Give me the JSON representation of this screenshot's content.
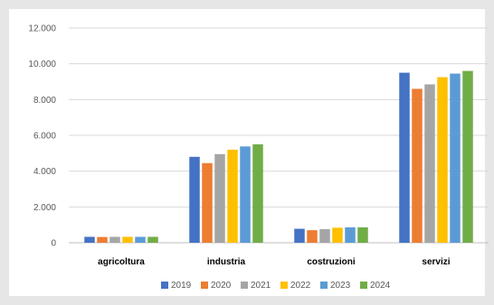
{
  "chart_data": {
    "type": "bar",
    "title": "",
    "xlabel": "",
    "ylabel": "",
    "categories": [
      "agricoltura",
      "industria",
      "costruzioni",
      "servizi"
    ],
    "series": [
      {
        "name": "2019",
        "color": "#4472c4",
        "values": [
          330,
          4800,
          780,
          9500
        ]
      },
      {
        "name": "2020",
        "color": "#ed7d31",
        "values": [
          320,
          4450,
          700,
          8600
        ]
      },
      {
        "name": "2021",
        "color": "#a5a5a5",
        "values": [
          330,
          4950,
          760,
          8850
        ]
      },
      {
        "name": "2022",
        "color": "#ffc000",
        "values": [
          330,
          5200,
          840,
          9250
        ]
      },
      {
        "name": "2023",
        "color": "#5b9bd5",
        "values": [
          330,
          5380,
          860,
          9450
        ]
      },
      {
        "name": "2024",
        "color": "#70ad47",
        "values": [
          330,
          5500,
          860,
          9600
        ]
      }
    ],
    "ylim": [
      0,
      12000
    ],
    "yticks": [
      {
        "value": 0,
        "label": "0"
      },
      {
        "value": 2000,
        "label": "2.000"
      },
      {
        "value": 4000,
        "label": "4.000"
      },
      {
        "value": 6000,
        "label": "6.000"
      },
      {
        "value": 8000,
        "label": "8.000"
      },
      {
        "value": 10000,
        "label": "10.000"
      },
      {
        "value": 12000,
        "label": "12.000"
      }
    ],
    "grid": true,
    "legend_position": "bottom"
  }
}
